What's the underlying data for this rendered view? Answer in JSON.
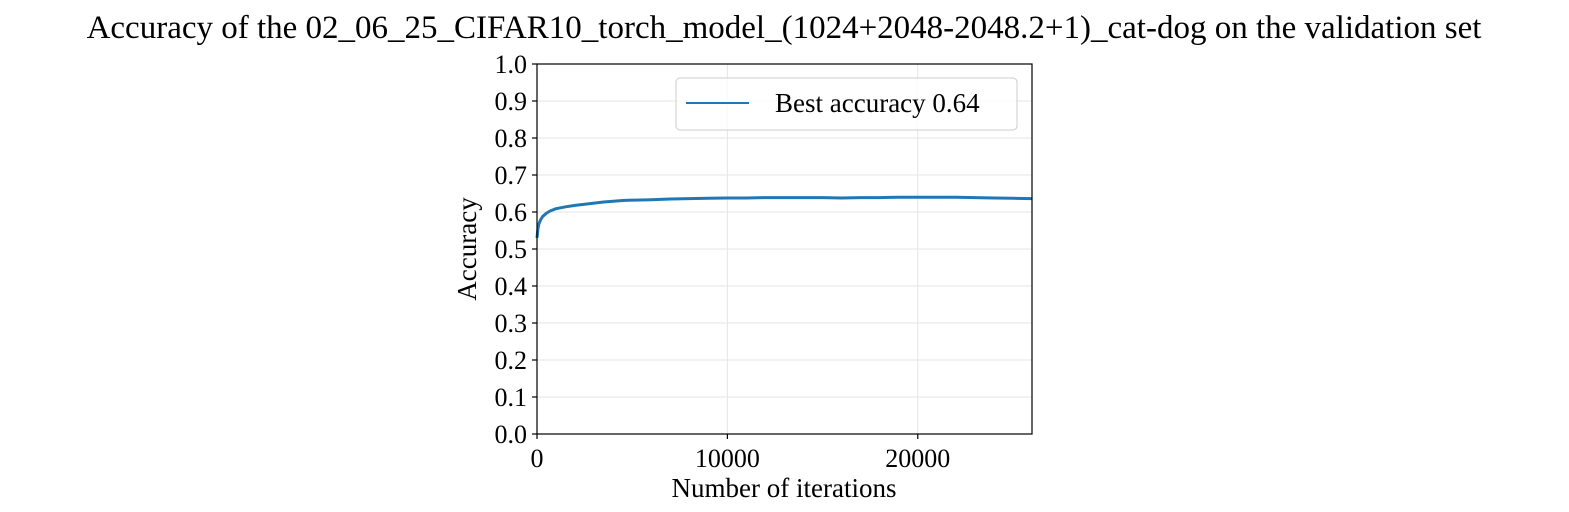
{
  "chart_data": {
    "type": "line",
    "title": "Accuracy of the 02_06_25_CIFAR10_torch_model_(1024+2048-2048.2+1)_cat-dog on the validation set",
    "xlabel": "Number of iterations",
    "ylabel": "Accuracy",
    "xlim": [
      0,
      26000
    ],
    "ylim": [
      0.0,
      1.0
    ],
    "xticks": [
      0,
      10000,
      20000
    ],
    "xtick_labels": [
      "0",
      "10000",
      "20000"
    ],
    "yticks": [
      0.0,
      0.1,
      0.2,
      0.3,
      0.4,
      0.5,
      0.6,
      0.7,
      0.8,
      0.9,
      1.0
    ],
    "ytick_labels": [
      "0.0",
      "0.1",
      "0.2",
      "0.3",
      "0.4",
      "0.5",
      "0.6",
      "0.7",
      "0.8",
      "0.9",
      "1.0"
    ],
    "grid": true,
    "legend_position": "top-right",
    "series": [
      {
        "name": "Best accuracy 0.64",
        "color": "#1f77b4",
        "x": [
          0,
          50,
          100,
          200,
          300,
          500,
          700,
          1000,
          1500,
          2000,
          2500,
          3000,
          3500,
          4000,
          4500,
          5000,
          6000,
          7000,
          8000,
          9000,
          10000,
          11000,
          12000,
          13000,
          14000,
          15000,
          16000,
          17000,
          18000,
          19000,
          20000,
          21000,
          22000,
          23000,
          24000,
          25000,
          26000
        ],
        "y": [
          0.53,
          0.555,
          0.568,
          0.58,
          0.588,
          0.597,
          0.603,
          0.609,
          0.614,
          0.618,
          0.621,
          0.624,
          0.627,
          0.629,
          0.631,
          0.632,
          0.633,
          0.635,
          0.636,
          0.637,
          0.638,
          0.638,
          0.639,
          0.639,
          0.639,
          0.639,
          0.638,
          0.639,
          0.639,
          0.64,
          0.64,
          0.64,
          0.64,
          0.639,
          0.638,
          0.637,
          0.636
        ]
      }
    ]
  }
}
